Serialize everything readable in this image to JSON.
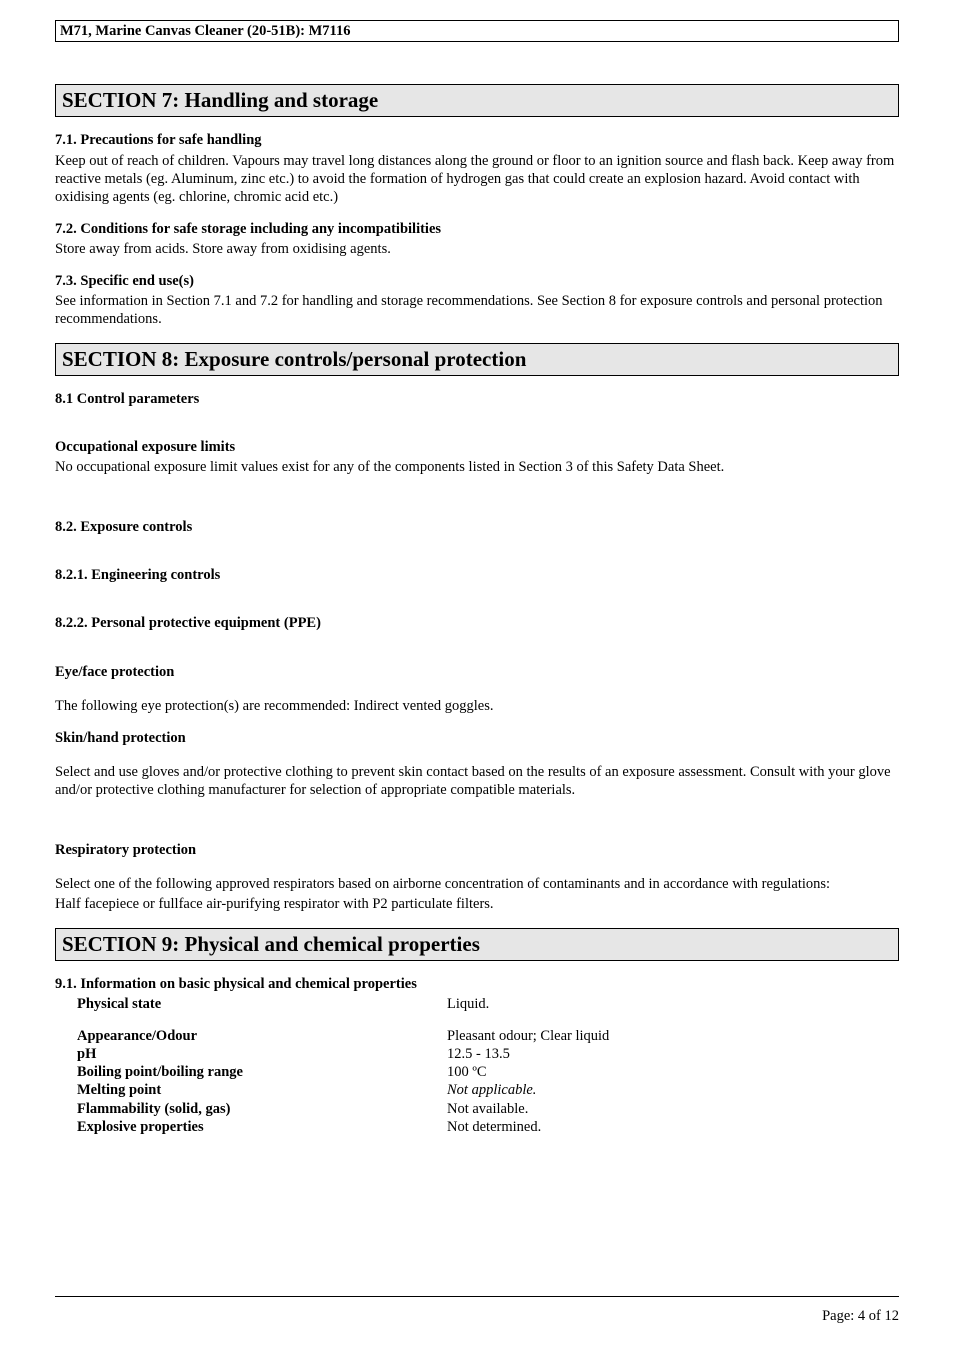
{
  "header": {
    "title": "M71, Marine Canvas Cleaner (20-51B): M7116"
  },
  "section7": {
    "title": "SECTION 7: Handling and storage",
    "s71_heading": "7.1. Precautions for safe handling",
    "s71_body": "Keep out of reach of children.  Vapours may travel long distances along the ground or floor to an ignition source and flash back.  Keep away from reactive metals (eg. Aluminum, zinc etc.) to avoid the formation of hydrogen gas that could create an explosion hazard.  Avoid contact with oxidising agents (eg. chlorine, chromic acid etc.)",
    "s72_heading": "7.2. Conditions for safe storage including any incompatibilities",
    "s72_body": "Store away from acids.  Store away from oxidising agents.",
    "s73_heading": "7.3. Specific end use(s)",
    "s73_body": "See information in Section 7.1 and 7.2 for handling and storage recommendations.  See Section 8 for exposure controls and personal protection recommendations."
  },
  "section8": {
    "title": "SECTION 8: Exposure controls/personal protection",
    "s81_heading": "8.1 Control parameters",
    "oel_heading": "Occupational exposure limits",
    "oel_body": "No occupational exposure limit values exist for any of the components listed in Section 3 of this Safety Data Sheet.",
    "s82_heading": "8.2. Exposure controls",
    "s821_heading": "8.2.1. Engineering controls",
    "s822_heading": "8.2.2. Personal protective equipment (PPE)",
    "eye_heading": "Eye/face protection",
    "eye_body": "The following eye protection(s) are recommended: Indirect vented goggles.",
    "skin_heading": "Skin/hand protection",
    "skin_body": "Select and use gloves and/or protective clothing to prevent skin contact based on the results of an exposure assessment.  Consult with your glove and/or protective clothing manufacturer for selection of appropriate compatible materials.",
    "resp_heading": "Respiratory protection",
    "resp_body1": "Select one of the following approved respirators based on airborne concentration of contaminants and in accordance with regulations:",
    "resp_body2": "Half facepiece or fullface air-purifying respirator with P2 particulate filters."
  },
  "section9": {
    "title": "SECTION 9: Physical and chemical properties",
    "s91_heading": "9.1. Information on basic physical and chemical properties",
    "rows": {
      "physical_state_k": "Physical state",
      "physical_state_v": "Liquid.",
      "appearance_k": "Appearance/Odour",
      "appearance_v": "Pleasant odour; Clear liquid",
      "ph_k": "pH",
      "ph_v": "12.5 - 13.5",
      "boiling_k": "Boiling point/boiling range",
      "boiling_v": "100 ºC",
      "melting_k": "Melting point",
      "melting_v": "Not applicable.",
      "flamm_k": "Flammability (solid, gas)",
      "flamm_v": "Not available.",
      "explosive_k": "Explosive properties",
      "explosive_v": "Not determined."
    }
  },
  "footer": {
    "page": "Page: 4 of  12"
  }
}
